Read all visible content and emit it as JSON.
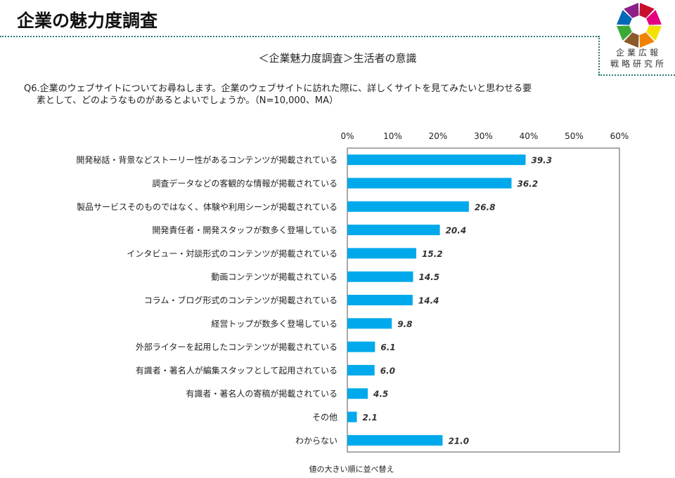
{
  "header": {
    "title": "企業の魅力度調査",
    "logo_text_line1": "企業広報",
    "logo_text_line2": "戦略研究所",
    "logo_colors": [
      "#c8102e",
      "#e4007f",
      "#f5e100",
      "#f08300",
      "#8b5a2b",
      "#3aaa35",
      "#0068b7",
      "#8e1f8a"
    ]
  },
  "subtitle": "＜企業魅力度調査＞生活者の意識",
  "question": {
    "line1": "Q6.企業のウェブサイトについてお尋ねします。企業のウェブサイトに訪れた際に、詳しくサイトを見てみたいと思わせる要",
    "line2": "素として、どのようなものがあるとよいでしょうか。（N=10,000、MA）"
  },
  "note": "値の大きい順に並べ替え",
  "chart_data": {
    "type": "bar",
    "orientation": "horizontal",
    "categories": [
      "開発秘話・背景などストーリー性があるコンテンツが掲載されている",
      "調査データなどの客観的な情報が掲載されている",
      "製品サービスそのものではなく、体験や利用シーンが掲載されている",
      "開発責任者・開発スタッフが数多く登場している",
      "インタビュー・対談形式のコンテンツが掲載されている",
      "動画コンテンツが掲載されている",
      "コラム・ブログ形式のコンテンツが掲載されている",
      "経営トップが数多く登場している",
      "外部ライターを起用したコンテンツが掲載されている",
      "有識者・著名人が編集スタッフとして起用されている",
      "有識者・著名人の寄稿が掲載されている",
      "その他",
      "わからない"
    ],
    "values": [
      39.3,
      36.2,
      26.8,
      20.4,
      15.2,
      14.5,
      14.4,
      9.8,
      6.1,
      6.0,
      4.5,
      2.1,
      21.0
    ],
    "value_labels": [
      "39.3",
      "36.2",
      "26.8",
      "20.4",
      "15.2",
      "14.5",
      "14.4",
      "9.8",
      "6.1",
      "6.0",
      "4.5",
      "2.1",
      "21.0"
    ],
    "xlim": [
      0,
      60
    ],
    "xticks": [
      "0%",
      "10%",
      "20%",
      "30%",
      "40%",
      "50%",
      "60%"
    ],
    "grid": false,
    "bar_color": "#00a9eb"
  }
}
